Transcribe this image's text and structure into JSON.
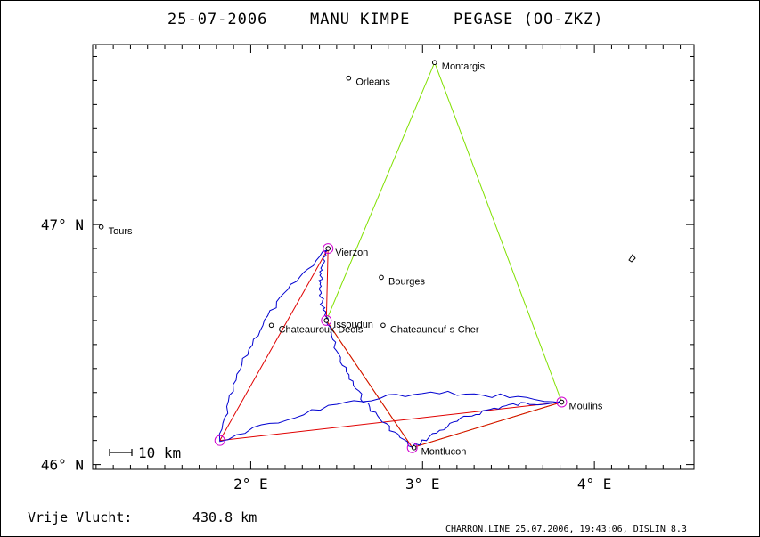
{
  "title": {
    "date": "25-07-2006",
    "pilot": "MANU KIMPE",
    "glider": "PEGASE (OO-ZKZ)"
  },
  "axes": {
    "y_ticks": [
      {
        "value": 47,
        "label": "47° N"
      },
      {
        "value": 46,
        "label": "46° N"
      }
    ],
    "x_ticks": [
      {
        "value": 2,
        "label": "2° E"
      },
      {
        "value": 3,
        "label": "3° E"
      },
      {
        "value": 4,
        "label": "4° E"
      }
    ],
    "lon_range": [
      1.08,
      4.58
    ],
    "lat_range": [
      45.98,
      47.75
    ]
  },
  "scale_bar": {
    "label": "10 km"
  },
  "towns": [
    {
      "name": "Montargis",
      "lon": 3.07,
      "lat": 47.675
    },
    {
      "name": "Orleans",
      "lon": 2.57,
      "lat": 47.61
    },
    {
      "name": "Tours",
      "lon": 1.13,
      "lat": 46.99
    },
    {
      "name": "Vierzon",
      "lon": 2.45,
      "lat": 46.9
    },
    {
      "name": "Bourges",
      "lon": 2.76,
      "lat": 46.78
    },
    {
      "name": "Issoudun",
      "lon": 2.44,
      "lat": 46.6
    },
    {
      "name": "Chateauroux-Deols",
      "lon": 2.12,
      "lat": 46.58
    },
    {
      "name": "Chateauneuf-s-Cher",
      "lon": 2.77,
      "lat": 46.58
    },
    {
      "name": "Moulins",
      "lon": 3.81,
      "lat": 46.26
    },
    {
      "name": "Montlucon",
      "lon": 2.95,
      "lat": 46.07
    }
  ],
  "turnpoints": [
    {
      "name": "Vierzon",
      "lon": 2.45,
      "lat": 46.9
    },
    {
      "name": "Issoudun",
      "lon": 2.44,
      "lat": 46.6
    },
    {
      "name": "Moulins",
      "lon": 3.81,
      "lat": 46.26
    },
    {
      "name": "Montlucon",
      "lon": 2.94,
      "lat": 46.07
    },
    {
      "name": "",
      "lon": 1.82,
      "lat": 46.1
    }
  ],
  "declared_task": {
    "color": "#80e000",
    "points": [
      [
        2.44,
        46.6
      ],
      [
        3.07,
        47.675
      ],
      [
        3.81,
        46.26
      ],
      [
        2.94,
        46.07
      ],
      [
        2.44,
        46.6
      ]
    ]
  },
  "scored_route": {
    "color": "#e00000",
    "points": [
      [
        2.44,
        46.6
      ],
      [
        2.94,
        46.07
      ],
      [
        3.81,
        46.26
      ],
      [
        1.82,
        46.1
      ],
      [
        2.45,
        46.9
      ],
      [
        2.44,
        46.6
      ]
    ]
  },
  "track_color": "#0000d0",
  "turnpoint_circle_color": "#d000d0",
  "footer": {
    "label": "Vrije Vlucht:",
    "value": "430.8 km",
    "stamp": "CHARRON.LINE 25.07.2006, 19:43:06, DISLIN 8.3"
  }
}
